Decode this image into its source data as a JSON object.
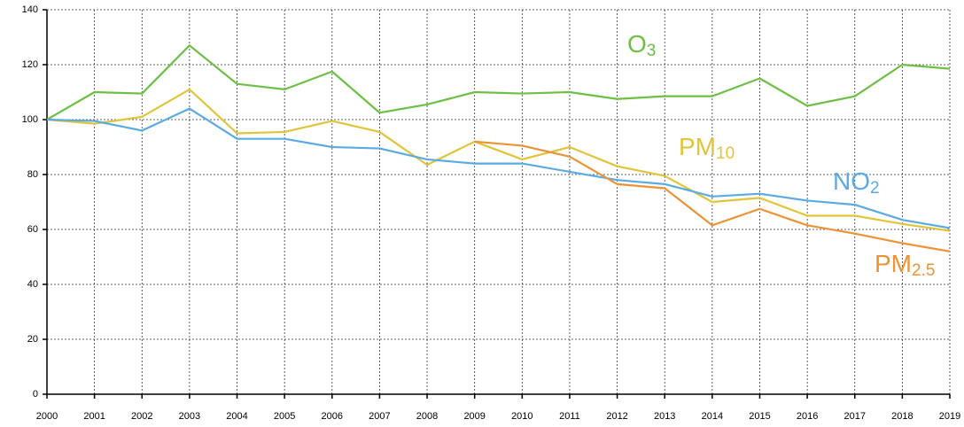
{
  "chart_data": {
    "type": "line",
    "categories": [
      "2000",
      "2001",
      "2002",
      "2003",
      "2004",
      "2005",
      "2006",
      "2007",
      "2008",
      "2009",
      "2010",
      "2011",
      "2012",
      "2013",
      "2014",
      "2015",
      "2016",
      "2017",
      "2018",
      "2019"
    ],
    "series": [
      {
        "name": "O3",
        "color": "#6dbf45",
        "values": [
          100,
          110,
          109.5,
          127,
          113,
          111,
          117.5,
          102.5,
          105.5,
          110,
          109.5,
          110,
          107.5,
          108.5,
          108.5,
          115,
          105,
          108.5,
          120,
          118.5
        ]
      },
      {
        "name": "PM10",
        "color": "#e2c43a",
        "values": [
          100,
          98.5,
          101,
          111,
          95,
          95.5,
          99.5,
          95.5,
          83.5,
          92,
          85.5,
          90,
          83,
          79.5,
          70,
          71.5,
          65,
          65,
          62,
          59.5
        ]
      },
      {
        "name": "NO2",
        "color": "#5aaae4",
        "values": [
          100,
          99.5,
          96,
          104,
          93,
          93,
          90,
          89.5,
          85.5,
          84,
          84,
          81,
          78,
          76.5,
          72,
          73,
          70.5,
          69,
          63.5,
          60.5
        ]
      },
      {
        "name": "PM2.5",
        "color": "#ec9237",
        "values": [
          null,
          null,
          null,
          null,
          null,
          null,
          null,
          null,
          null,
          92,
          90.5,
          86.5,
          76.5,
          75,
          61.5,
          67.5,
          61.5,
          58.5,
          55,
          52
        ]
      }
    ],
    "ylim": [
      0,
      140
    ],
    "yticks": [
      0,
      20,
      40,
      60,
      80,
      100,
      120,
      140
    ],
    "grid": true
  }
}
